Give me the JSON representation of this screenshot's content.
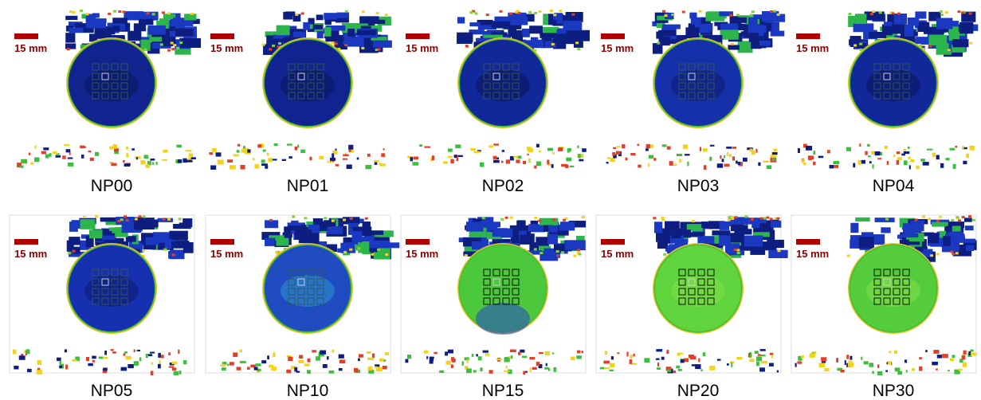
{
  "panels": [
    {
      "label": "NP00",
      "scale": "15 mm"
    },
    {
      "label": "NP01",
      "scale": "15 mm"
    },
    {
      "label": "NP02",
      "scale": "15 mm"
    },
    {
      "label": "NP03",
      "scale": "15 mm"
    },
    {
      "label": "NP04",
      "scale": "15 mm"
    },
    {
      "label": "NP05",
      "scale": "15 mm"
    },
    {
      "label": "NP10",
      "scale": "15 mm"
    },
    {
      "label": "NP15",
      "scale": "15 mm"
    },
    {
      "label": "NP20",
      "scale": "15 mm"
    },
    {
      "label": "NP30",
      "scale": "15 mm"
    }
  ]
}
